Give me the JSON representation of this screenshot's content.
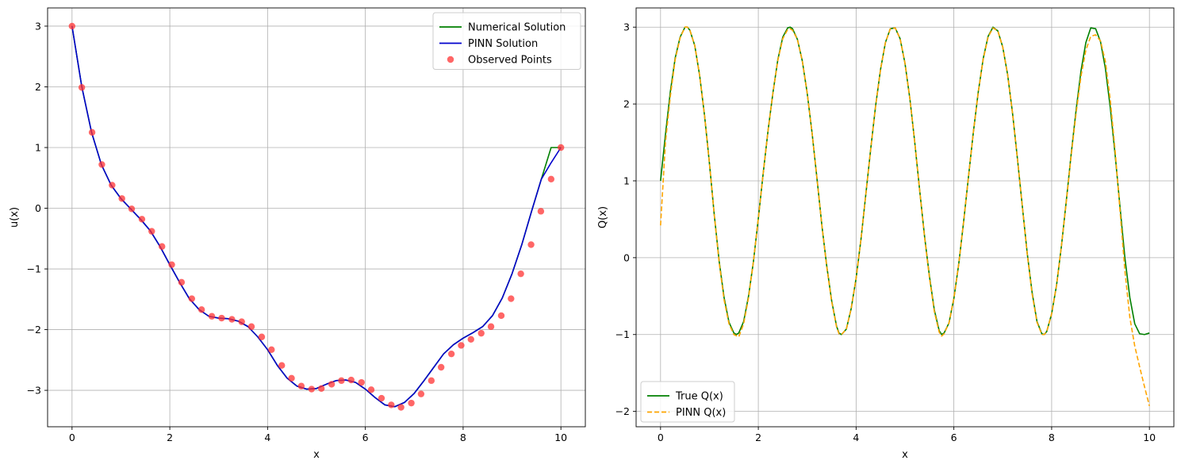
{
  "chart_data": [
    {
      "type": "line",
      "xlabel": "x",
      "ylabel": "u(x)",
      "xlim": [
        -0.5,
        10.5
      ],
      "ylim": [
        -3.6,
        3.3
      ],
      "xticks": [
        0,
        2,
        4,
        6,
        8,
        10
      ],
      "yticks": [
        3,
        2,
        1,
        0,
        -1,
        -2,
        -3
      ],
      "grid": true,
      "legend_position": "top-right",
      "series": [
        {
          "name": "Numerical Solution",
          "kind": "line",
          "color": "#008000",
          "x": [
            0,
            0.2,
            0.4,
            0.6,
            0.8,
            1.0,
            1.2,
            1.4,
            1.6,
            1.8,
            2.0,
            2.2,
            2.4,
            2.6,
            2.8,
            3.0,
            3.2,
            3.4,
            3.6,
            3.8,
            4.0,
            4.2,
            4.4,
            4.6,
            4.8,
            5.0,
            5.2,
            5.4,
            5.6,
            5.8,
            6.0,
            6.2,
            6.4,
            6.6,
            6.8,
            7.0,
            7.2,
            7.4,
            7.6,
            7.8,
            8.0,
            8.2,
            8.4,
            8.6,
            8.8,
            9.0,
            9.2,
            9.4,
            9.6,
            9.8,
            10.0
          ],
          "y": [
            3.0,
            2.0,
            1.25,
            0.72,
            0.38,
            0.16,
            -0.01,
            -0.18,
            -0.37,
            -0.63,
            -0.93,
            -1.22,
            -1.49,
            -1.67,
            -1.78,
            -1.81,
            -1.82,
            -1.86,
            -1.95,
            -2.12,
            -2.33,
            -2.59,
            -2.8,
            -2.93,
            -2.98,
            -2.97,
            -2.9,
            -2.84,
            -2.83,
            -2.87,
            -2.98,
            -3.12,
            -3.24,
            -3.27,
            -3.2,
            -3.05,
            -2.84,
            -2.62,
            -2.4,
            -2.25,
            -2.14,
            -2.05,
            -1.95,
            -1.77,
            -1.48,
            -1.08,
            -0.6,
            -0.05,
            0.48,
            1.0,
            1.0
          ]
        },
        {
          "name": "PINN Solution",
          "kind": "line",
          "color": "#0000cc",
          "x": [
            0,
            0.2,
            0.4,
            0.6,
            0.8,
            1.0,
            1.2,
            1.4,
            1.6,
            1.8,
            2.0,
            2.2,
            2.4,
            2.6,
            2.8,
            3.0,
            3.2,
            3.4,
            3.6,
            3.8,
            4.0,
            4.2,
            4.4,
            4.6,
            4.8,
            5.0,
            5.2,
            5.4,
            5.6,
            5.8,
            6.0,
            6.2,
            6.4,
            6.6,
            6.8,
            7.0,
            7.2,
            7.4,
            7.6,
            7.8,
            8.0,
            8.2,
            8.4,
            8.6,
            8.8,
            9.0,
            9.2,
            9.4,
            9.6,
            9.8,
            10.0
          ],
          "y": [
            3.0,
            2.0,
            1.25,
            0.72,
            0.38,
            0.16,
            -0.01,
            -0.18,
            -0.37,
            -0.63,
            -0.93,
            -1.22,
            -1.49,
            -1.67,
            -1.78,
            -1.81,
            -1.82,
            -1.86,
            -1.95,
            -2.12,
            -2.33,
            -2.59,
            -2.8,
            -2.93,
            -2.98,
            -2.97,
            -2.9,
            -2.84,
            -2.83,
            -2.87,
            -2.98,
            -3.12,
            -3.24,
            -3.27,
            -3.2,
            -3.05,
            -2.84,
            -2.62,
            -2.4,
            -2.25,
            -2.14,
            -2.05,
            -1.95,
            -1.77,
            -1.48,
            -1.08,
            -0.6,
            -0.05,
            0.48,
            0.75,
            1.0
          ]
        },
        {
          "name": "Observed Points",
          "kind": "scatter",
          "color": "#ff3333",
          "x": [
            0,
            0.2,
            0.41,
            0.61,
            0.82,
            1.02,
            1.22,
            1.43,
            1.63,
            1.84,
            2.04,
            2.24,
            2.45,
            2.65,
            2.86,
            3.06,
            3.27,
            3.47,
            3.67,
            3.88,
            4.08,
            4.29,
            4.49,
            4.69,
            4.9,
            5.1,
            5.31,
            5.51,
            5.71,
            5.92,
            6.12,
            6.33,
            6.53,
            6.73,
            6.94,
            7.14,
            7.35,
            7.55,
            7.76,
            7.96,
            8.16,
            8.37,
            8.57,
            8.78,
            8.98,
            9.18,
            9.39,
            9.59,
            9.8,
            10.0
          ],
          "y": [
            3.0,
            1.99,
            1.25,
            0.72,
            0.38,
            0.16,
            -0.01,
            -0.18,
            -0.38,
            -0.63,
            -0.93,
            -1.22,
            -1.49,
            -1.67,
            -1.78,
            -1.81,
            -1.83,
            -1.87,
            -1.95,
            -2.12,
            -2.33,
            -2.59,
            -2.8,
            -2.93,
            -2.98,
            -2.97,
            -2.9,
            -2.84,
            -2.83,
            -2.87,
            -2.99,
            -3.13,
            -3.24,
            -3.28,
            -3.21,
            -3.06,
            -2.84,
            -2.62,
            -2.4,
            -2.26,
            -2.16,
            -2.06,
            -1.95,
            -1.77,
            -1.49,
            -1.08,
            -0.6,
            -0.05,
            0.48,
            1.0
          ]
        }
      ]
    },
    {
      "type": "line",
      "xlabel": "x",
      "ylabel": "Q(x)",
      "xlim": [
        -0.5,
        10.5
      ],
      "ylim": [
        -2.2,
        3.25
      ],
      "xticks": [
        0,
        2,
        4,
        6,
        8,
        10
      ],
      "yticks": [
        3,
        2,
        1,
        0,
        -1,
        -2
      ],
      "grid": true,
      "legend_position": "bottom-left",
      "series": [
        {
          "name": "True Q(x)",
          "kind": "line",
          "color": "#008000",
          "dash": false,
          "x": [
            0,
            0.1,
            0.2,
            0.3,
            0.4,
            0.5,
            0.55,
            0.6,
            0.7,
            0.8,
            0.9,
            1.0,
            1.1,
            1.2,
            1.3,
            1.4,
            1.5,
            1.55,
            1.6,
            1.7,
            1.8,
            1.9,
            2.0,
            2.1,
            2.2,
            2.3,
            2.4,
            2.5,
            2.6,
            2.65,
            2.7,
            2.8,
            2.9,
            3.0,
            3.1,
            3.2,
            3.3,
            3.4,
            3.5,
            3.6,
            3.65,
            3.7,
            3.8,
            3.9,
            4.0,
            4.1,
            4.2,
            4.3,
            4.4,
            4.5,
            4.6,
            4.7,
            4.8,
            4.9,
            5.0,
            5.1,
            5.2,
            5.3,
            5.4,
            5.5,
            5.6,
            5.7,
            5.75,
            5.8,
            5.9,
            6.0,
            6.1,
            6.2,
            6.3,
            6.4,
            6.5,
            6.6,
            6.7,
            6.8,
            6.9,
            7.0,
            7.1,
            7.2,
            7.3,
            7.4,
            7.5,
            7.6,
            7.7,
            7.8,
            7.85,
            7.9,
            8.0,
            8.1,
            8.2,
            8.3,
            8.4,
            8.5,
            8.6,
            8.7,
            8.8,
            8.9,
            9.0,
            9.1,
            9.2,
            9.3,
            9.4,
            9.5,
            9.6,
            9.7,
            9.8,
            9.9,
            10.0
          ],
          "y": [
            1.0,
            1.6,
            2.16,
            2.6,
            2.87,
            3.0,
            3.0,
            2.96,
            2.76,
            2.37,
            1.85,
            1.23,
            0.55,
            -0.05,
            -0.52,
            -0.84,
            -0.98,
            -1.0,
            -0.98,
            -0.83,
            -0.5,
            -0.05,
            0.51,
            1.1,
            1.66,
            2.15,
            2.58,
            2.87,
            2.99,
            3.0,
            2.98,
            2.84,
            2.56,
            2.14,
            1.62,
            1.03,
            0.42,
            -0.11,
            -0.56,
            -0.89,
            -0.98,
            -1.0,
            -0.93,
            -0.66,
            -0.27,
            0.24,
            0.83,
            1.42,
            1.98,
            2.45,
            2.8,
            2.98,
            2.99,
            2.85,
            2.53,
            2.07,
            1.5,
            0.88,
            0.28,
            -0.24,
            -0.68,
            -0.95,
            -1.0,
            -0.98,
            -0.85,
            -0.53,
            -0.08,
            0.47,
            1.06,
            1.64,
            2.16,
            2.59,
            2.88,
            3.0,
            2.95,
            2.74,
            2.38,
            1.88,
            1.29,
            0.67,
            0.06,
            -0.45,
            -0.83,
            -0.99,
            -1.0,
            -0.96,
            -0.73,
            -0.36,
            0.15,
            0.74,
            1.35,
            1.92,
            2.43,
            2.8,
            2.99,
            2.98,
            2.81,
            2.46,
            1.95,
            1.33,
            0.65,
            -0.01,
            -0.52,
            -0.86,
            -0.99,
            -1.0,
            -0.98
          ]
        },
        {
          "name": "PINN Q(x)",
          "kind": "line",
          "color": "#ffa500",
          "dash": true,
          "x": [
            0,
            0.05,
            0.1,
            0.2,
            0.3,
            0.4,
            0.5,
            0.55,
            0.6,
            0.7,
            0.8,
            0.9,
            1.0,
            1.1,
            1.2,
            1.3,
            1.4,
            1.5,
            1.6,
            1.7,
            1.8,
            1.9,
            2.0,
            2.1,
            2.2,
            2.3,
            2.4,
            2.5,
            2.6,
            2.65,
            2.7,
            2.8,
            2.9,
            3.0,
            3.1,
            3.2,
            3.3,
            3.4,
            3.5,
            3.6,
            3.65,
            3.7,
            3.8,
            3.9,
            4.0,
            4.1,
            4.2,
            4.3,
            4.4,
            4.5,
            4.6,
            4.7,
            4.8,
            4.9,
            5.0,
            5.1,
            5.2,
            5.3,
            5.4,
            5.5,
            5.6,
            5.7,
            5.75,
            5.8,
            5.9,
            6.0,
            6.1,
            6.2,
            6.3,
            6.4,
            6.5,
            6.6,
            6.7,
            6.8,
            6.9,
            7.0,
            7.1,
            7.2,
            7.3,
            7.4,
            7.5,
            7.6,
            7.7,
            7.8,
            7.85,
            7.9,
            8.0,
            8.1,
            8.2,
            8.3,
            8.4,
            8.5,
            8.6,
            8.7,
            8.8,
            8.9,
            9.0,
            9.1,
            9.2,
            9.3,
            9.4,
            9.5,
            9.6,
            9.7,
            9.8,
            9.9,
            10.0
          ],
          "y": [
            0.42,
            0.95,
            1.5,
            2.1,
            2.58,
            2.86,
            3.0,
            3.0,
            2.96,
            2.76,
            2.37,
            1.85,
            1.23,
            0.55,
            -0.07,
            -0.55,
            -0.86,
            -1.0,
            -1.03,
            -0.86,
            -0.52,
            -0.05,
            0.51,
            1.1,
            1.66,
            2.15,
            2.57,
            2.85,
            2.97,
            2.98,
            2.96,
            2.84,
            2.56,
            2.14,
            1.62,
            1.03,
            0.42,
            -0.12,
            -0.57,
            -0.9,
            -0.99,
            -1.0,
            -0.93,
            -0.66,
            -0.27,
            0.24,
            0.83,
            1.42,
            1.98,
            2.45,
            2.8,
            2.98,
            2.99,
            2.85,
            2.53,
            2.07,
            1.5,
            0.88,
            0.27,
            -0.26,
            -0.7,
            -0.97,
            -1.02,
            -0.99,
            -0.85,
            -0.53,
            -0.08,
            0.47,
            1.06,
            1.64,
            2.16,
            2.58,
            2.87,
            2.99,
            2.95,
            2.74,
            2.38,
            1.88,
            1.29,
            0.67,
            0.05,
            -0.47,
            -0.84,
            -1.0,
            -1.0,
            -0.96,
            -0.73,
            -0.36,
            0.15,
            0.73,
            1.33,
            1.88,
            2.36,
            2.7,
            2.88,
            2.9,
            2.82,
            2.55,
            2.05,
            1.38,
            0.6,
            -0.18,
            -0.78,
            -1.15,
            -1.42,
            -1.68,
            -1.93
          ]
        }
      ]
    }
  ]
}
